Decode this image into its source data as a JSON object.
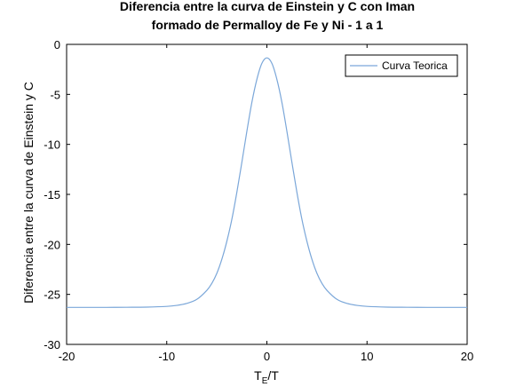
{
  "chart_data": {
    "type": "line",
    "title_lines": [
      "Diferencia entre la curva de Einstein y C con Iman",
      "formado de Permalloy de Fe y Ni - 1 a 1"
    ],
    "xlabel": "T_E/T",
    "xlabel_main": "T",
    "xlabel_sub": "E",
    "xlabel_rest": "/T",
    "ylabel": "Diferencia entre la curva de Einstein y C",
    "xlim": [
      -20,
      20
    ],
    "ylim": [
      -30,
      0
    ],
    "x_ticks": [
      -20,
      -10,
      0,
      10,
      20
    ],
    "y_ticks": [
      0,
      -5,
      -10,
      -15,
      -20,
      -25,
      -30
    ],
    "x_tick_labels": [
      "-20",
      "-10",
      "0",
      "10",
      "20"
    ],
    "y_tick_labels": [
      "0",
      "-5",
      "-10",
      "-15",
      "-20",
      "-25",
      "-30"
    ],
    "legend_position": "top-right",
    "grid": false,
    "series": [
      {
        "name": "Curva Teorica",
        "color": "#7ba7d9",
        "x": [
          -20,
          -18,
          -16,
          -14,
          -12,
          -10,
          -9,
          -8,
          -7,
          -6,
          -5.5,
          -5,
          -4.5,
          -4,
          -3.5,
          -3,
          -2.5,
          -2,
          -1.5,
          -1,
          -0.5,
          0,
          0.5,
          1,
          1.5,
          2,
          2.5,
          3,
          3.5,
          4,
          4.5,
          5,
          5.5,
          6,
          7,
          8,
          9,
          10,
          12,
          14,
          16,
          18,
          20
        ],
        "y": [
          -26.3,
          -26.3,
          -26.3,
          -26.29,
          -26.27,
          -26.2,
          -26.1,
          -25.9,
          -25.5,
          -24.6,
          -23.9,
          -22.9,
          -21.5,
          -19.7,
          -17.5,
          -14.8,
          -11.8,
          -8.7,
          -5.8,
          -3.5,
          -1.9,
          -1.35,
          -1.9,
          -3.5,
          -5.8,
          -8.7,
          -11.8,
          -14.8,
          -17.5,
          -19.7,
          -21.5,
          -22.9,
          -23.9,
          -24.6,
          -25.5,
          -25.9,
          -26.1,
          -26.2,
          -26.27,
          -26.29,
          -26.3,
          -26.3,
          -26.3
        ]
      }
    ]
  }
}
